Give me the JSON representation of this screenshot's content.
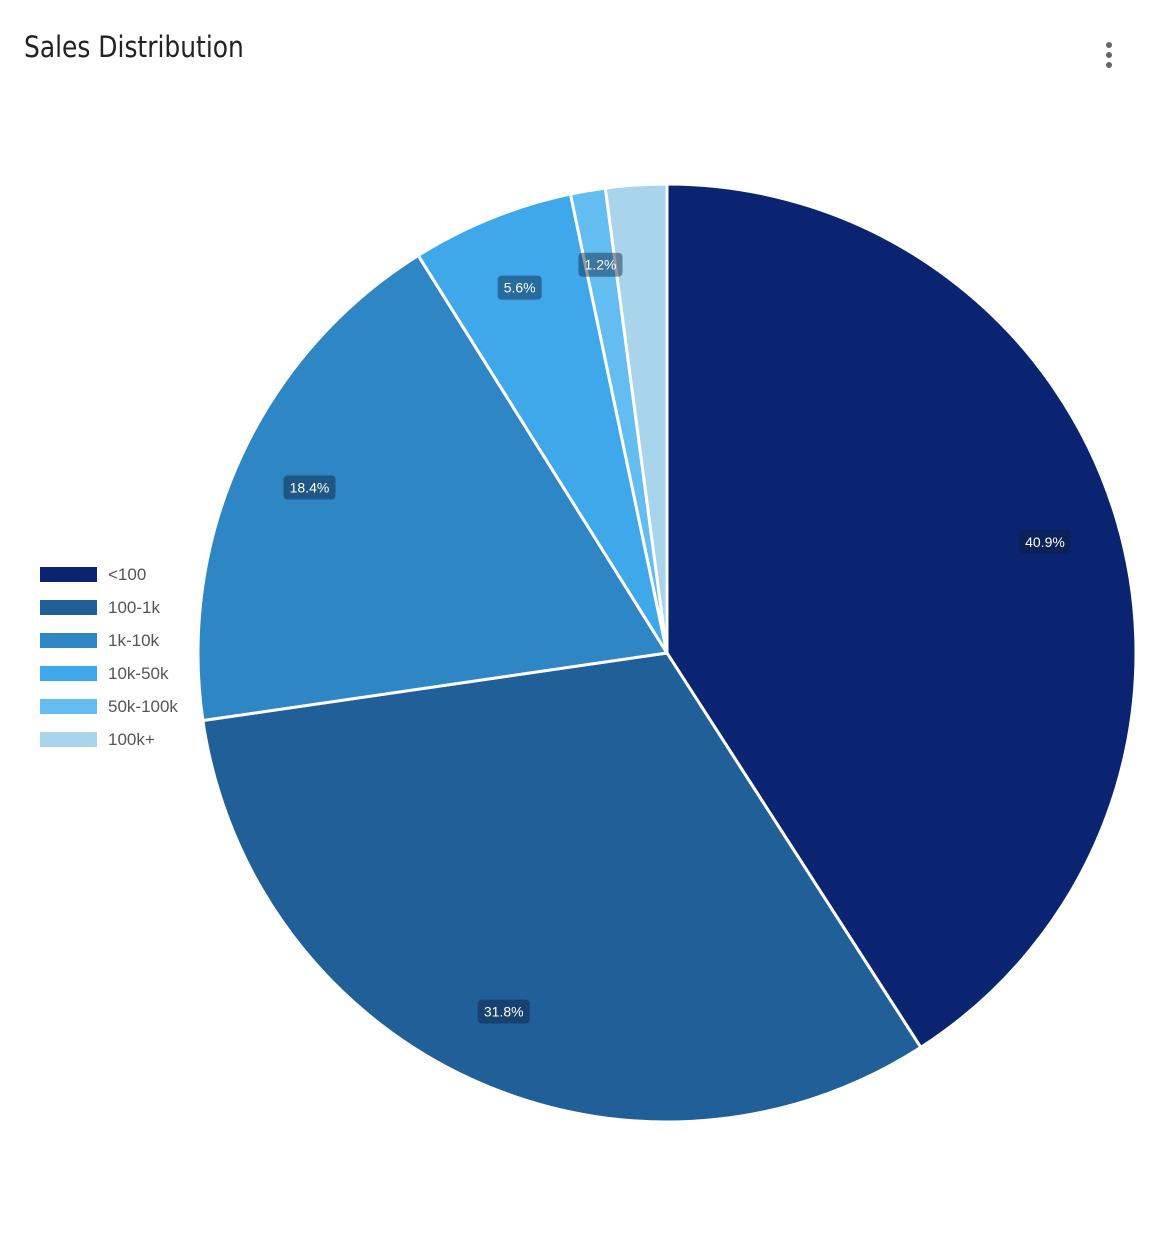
{
  "header": {
    "title": "Sales Distribution",
    "menu_icon": "more-vert-icon"
  },
  "chart_data": {
    "type": "pie",
    "title": "Sales Distribution",
    "legend_position": "left",
    "categories": [
      "<100",
      "100-1k",
      "1k-10k",
      "10k-50k",
      "50k-100k",
      "100k+"
    ],
    "values": [
      40.9,
      31.8,
      18.4,
      5.6,
      1.2,
      2.1
    ],
    "labels": [
      "40.9%",
      "31.8%",
      "18.4%",
      "5.6%",
      "1.2%",
      ""
    ],
    "colors": [
      "#0a2472",
      "#215f99",
      "#2e86c4",
      "#3ea8eb",
      "#63bdf0",
      "#a8d4ec"
    ]
  }
}
